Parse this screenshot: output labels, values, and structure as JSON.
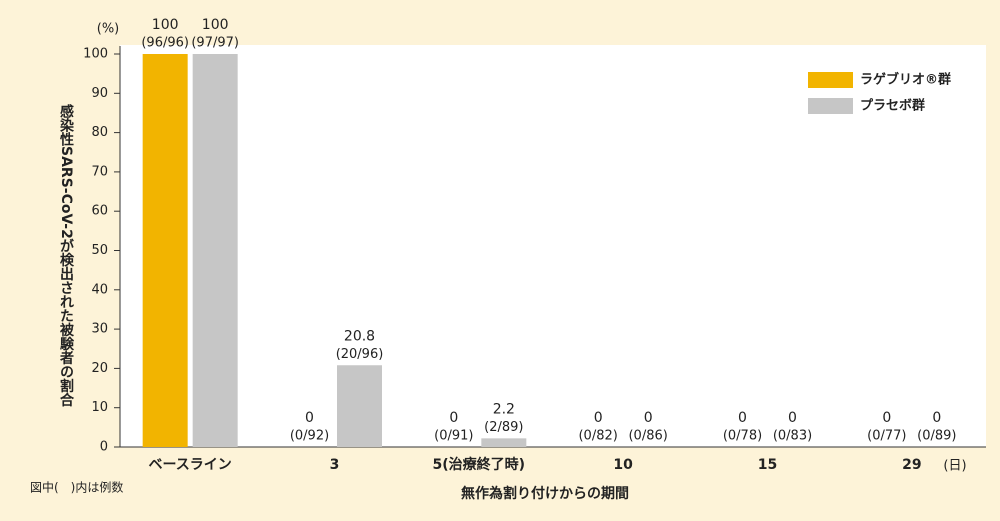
{
  "chart_data": {
    "type": "bar",
    "y_unit": "(%)",
    "ylabel": "感染性SARS-CoV-2が検出された被験者の割合",
    "xlabel": "無作為割り付けからの期間",
    "x_unit": "(日)",
    "note": "図中(　)内は例数",
    "categories": [
      "ベースライン",
      "3",
      "5(治療終了時)",
      "10",
      "15",
      "29"
    ],
    "series": [
      {
        "name": "ラゲブリオ®群",
        "color": "#f2b400",
        "values": [
          100,
          0,
          0,
          0,
          0,
          0
        ],
        "counts": [
          "(96/96)",
          "(0/92)",
          "(0/91)",
          "(0/82)",
          "(0/78)",
          "(0/77)"
        ]
      },
      {
        "name": "プラセボ群",
        "color": "#c6c6c6",
        "values": [
          100,
          20.8,
          2.2,
          0,
          0,
          0
        ],
        "counts": [
          "(97/97)",
          "(20/96)",
          "(2/89)",
          "(0/86)",
          "(0/83)",
          "(0/89)"
        ]
      }
    ],
    "ylim": [
      0,
      100
    ],
    "yticks": [
      0,
      10,
      20,
      30,
      40,
      50,
      60,
      70,
      80,
      90,
      100
    ],
    "legend": "upper right"
  }
}
